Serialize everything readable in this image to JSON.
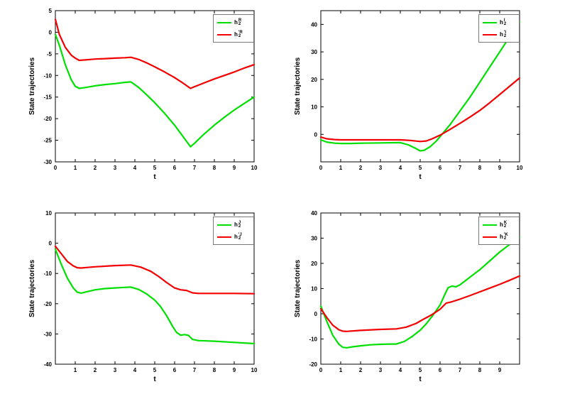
{
  "figure": {
    "background": "#ffffff"
  },
  "chart_data": [
    {
      "type": "line",
      "xlabel": "t",
      "ylabel": "State trajectories",
      "xlim": [
        0,
        10
      ],
      "ylim": [
        -30,
        5
      ],
      "xticks": [
        0,
        1,
        2,
        3,
        4,
        5,
        6,
        7,
        8,
        9,
        10
      ],
      "yticks": [
        5,
        0,
        -5,
        -10,
        -15,
        -20,
        -25,
        -30
      ],
      "grid": false,
      "legend_position": "top-right",
      "series": [
        {
          "name": "h_2^R",
          "legend": {
            "base": "h",
            "sub": "2",
            "sup": "R"
          },
          "color": "#00e000",
          "x": [
            0,
            0.2,
            0.5,
            0.8,
            1.0,
            1.2,
            1.5,
            2,
            2.5,
            3,
            3.5,
            3.8,
            4.2,
            4.6,
            5,
            5.5,
            6,
            6.4,
            6.8,
            7,
            7.5,
            8,
            8.5,
            9,
            9.5,
            10
          ],
          "y": [
            -0.5,
            -3,
            -7.5,
            -11,
            -12.5,
            -13,
            -12.8,
            -12.4,
            -12.1,
            -11.9,
            -11.6,
            -11.5,
            -12.8,
            -14.5,
            -16.3,
            -18.8,
            -21.5,
            -24,
            -26.5,
            -25.7,
            -23.5,
            -21.5,
            -19.7,
            -18,
            -16.5,
            -15
          ]
        },
        {
          "name": "h_2^'R",
          "legend": {
            "base": "h",
            "sub": "2",
            "sup": "'R"
          },
          "color": "#f40000",
          "x": [
            0,
            0.2,
            0.5,
            0.8,
            1.0,
            1.2,
            1.5,
            2,
            2.5,
            3,
            3.5,
            3.8,
            4.2,
            4.6,
            5,
            5.5,
            6,
            6.4,
            6.8,
            7,
            7.5,
            8,
            8.5,
            9,
            9.5,
            10
          ],
          "y": [
            3,
            -0.5,
            -3.5,
            -5.3,
            -6,
            -6.5,
            -6.4,
            -6.2,
            -6.1,
            -6,
            -5.9,
            -5.8,
            -6.3,
            -7.1,
            -8,
            -9.2,
            -10.5,
            -11.7,
            -13,
            -12.6,
            -11.7,
            -10.8,
            -10,
            -9.2,
            -8.3,
            -7.5
          ]
        }
      ]
    },
    {
      "type": "line",
      "xlabel": "t",
      "ylabel": "State trajectories",
      "xlim": [
        0,
        10
      ],
      "ylim": [
        -10,
        45
      ],
      "xticks": [
        0,
        1,
        2,
        3,
        4,
        5,
        6,
        7,
        8,
        9,
        10
      ],
      "yticks": [
        40,
        30,
        20,
        10,
        0
      ],
      "grid": false,
      "legend_position": "top-right",
      "series": [
        {
          "name": "h_2^I",
          "legend": {
            "base": "h",
            "sub": "2",
            "sup": "I"
          },
          "color": "#00e000",
          "x": [
            0,
            0.3,
            0.7,
            1,
            1.5,
            2,
            3,
            4,
            4.4,
            4.8,
            5,
            5.2,
            5.5,
            5.8,
            6,
            6.5,
            7,
            7.5,
            8,
            8.5,
            9,
            9.5,
            10
          ],
          "y": [
            -2,
            -2.8,
            -3.2,
            -3.3,
            -3.3,
            -3.2,
            -3.1,
            -3,
            -3.8,
            -5.2,
            -6,
            -5.8,
            -4.5,
            -2.5,
            -0.8,
            3.5,
            8.5,
            13.5,
            19,
            24.5,
            30,
            35.5,
            41
          ]
        },
        {
          "name": "h_2^'I",
          "legend": {
            "base": "h",
            "sub": "2",
            "sup": "'I"
          },
          "color": "#f40000",
          "x": [
            0,
            0.3,
            0.7,
            1,
            2,
            3,
            4,
            4.5,
            5,
            5.3,
            5.6,
            6,
            6.5,
            7,
            7.5,
            8,
            8.5,
            9,
            9.5,
            10
          ],
          "y": [
            -1,
            -1.6,
            -1.9,
            -2,
            -2,
            -2,
            -2,
            -2.2,
            -2.6,
            -2.4,
            -1.6,
            -0.3,
            1.8,
            4,
            6.3,
            8.7,
            11.5,
            14.5,
            17.5,
            20.5
          ]
        }
      ]
    },
    {
      "type": "line",
      "xlabel": "t",
      "ylabel": "State trajectories",
      "xlim": [
        0,
        10
      ],
      "ylim": [
        -40,
        10
      ],
      "xticks": [
        1,
        2,
        3,
        4,
        5,
        6,
        7,
        8,
        9,
        10
      ],
      "yticks": [
        10,
        0,
        -10,
        -20,
        -30,
        -40
      ],
      "grid": false,
      "legend_position": "top-right",
      "series": [
        {
          "name": "h_2^J",
          "legend": {
            "base": "h",
            "sub": "2",
            "sup": "J"
          },
          "color": "#00e000",
          "x": [
            0,
            0.3,
            0.6,
            0.9,
            1.1,
            1.3,
            1.6,
            2,
            2.5,
            3,
            3.5,
            3.8,
            4.2,
            4.6,
            5,
            5.3,
            5.6,
            5.9,
            6.1,
            6.3,
            6.5,
            6.7,
            6.9,
            7.2,
            7.6,
            8,
            9,
            10
          ],
          "y": [
            -2,
            -7,
            -11.5,
            -14.8,
            -16.2,
            -16.5,
            -16,
            -15.4,
            -15,
            -14.8,
            -14.6,
            -14.5,
            -15.3,
            -16.8,
            -18.8,
            -21,
            -24,
            -27.5,
            -29.5,
            -30.4,
            -30.2,
            -30.5,
            -31.8,
            -32.2,
            -32.3,
            -32.4,
            -32.8,
            -33.2
          ]
        },
        {
          "name": "h_2^'J",
          "legend": {
            "base": "h",
            "sub": "2",
            "sup": "'J"
          },
          "color": "#f40000",
          "x": [
            0,
            0.3,
            0.6,
            0.9,
            1.1,
            1.3,
            2,
            3,
            3.8,
            4.3,
            4.8,
            5.2,
            5.6,
            6,
            6.3,
            6.6,
            6.9,
            7.2,
            8,
            9,
            10
          ],
          "y": [
            -1,
            -3.5,
            -6,
            -7.5,
            -8.1,
            -8.2,
            -7.8,
            -7.4,
            -7.2,
            -7.9,
            -9.3,
            -11,
            -13,
            -14.8,
            -15.4,
            -15.6,
            -16.4,
            -16.6,
            -16.6,
            -16.6,
            -16.7
          ]
        }
      ]
    },
    {
      "type": "line",
      "xlabel": "t",
      "ylabel": "State trajectories",
      "xlim": [
        0,
        10
      ],
      "ylim": [
        -20,
        40
      ],
      "xticks": [
        0,
        1,
        2,
        3,
        4,
        5,
        6,
        7,
        8,
        9
      ],
      "yticks": [
        40,
        30,
        20,
        10,
        0,
        -10,
        -20
      ],
      "grid": false,
      "legend_position": "top-right",
      "series": [
        {
          "name": "h_2^K",
          "legend": {
            "base": "h",
            "sub": "2",
            "sup": "K"
          },
          "color": "#00e000",
          "x": [
            0,
            0.3,
            0.6,
            0.9,
            1.1,
            1.3,
            1.6,
            2,
            2.5,
            3,
            3.5,
            3.8,
            4.2,
            4.6,
            5,
            5.3,
            5.6,
            6,
            6.2,
            6.4,
            6.6,
            6.8,
            7,
            7.5,
            8,
            8.5,
            9,
            9.5,
            10
          ],
          "y": [
            3,
            -3,
            -8.5,
            -12,
            -13.3,
            -13.5,
            -13.1,
            -12.7,
            -12.3,
            -12.1,
            -12,
            -12,
            -11,
            -9,
            -6.5,
            -4,
            -1,
            3.5,
            7,
            10.3,
            11,
            10.7,
            11.5,
            14.5,
            17.5,
            21,
            24.5,
            27.5,
            30.5
          ]
        },
        {
          "name": "h_2^'K",
          "legend": {
            "base": "h",
            "sub": "2",
            "sup": "'K"
          },
          "color": "#f40000",
          "x": [
            0,
            0.3,
            0.6,
            0.9,
            1.1,
            1.3,
            2,
            3,
            3.8,
            4.3,
            4.8,
            5.2,
            5.6,
            6,
            6.3,
            6.6,
            7,
            7.5,
            8,
            8.5,
            9,
            9.5,
            10
          ],
          "y": [
            2,
            -1.5,
            -4.5,
            -6.3,
            -6.9,
            -7,
            -6.6,
            -6.2,
            -6,
            -5.3,
            -3.8,
            -2,
            -0.3,
            1.8,
            4.2,
            4.8,
            5.8,
            7.2,
            8.7,
            10.2,
            11.7,
            13.3,
            15
          ]
        }
      ]
    }
  ]
}
